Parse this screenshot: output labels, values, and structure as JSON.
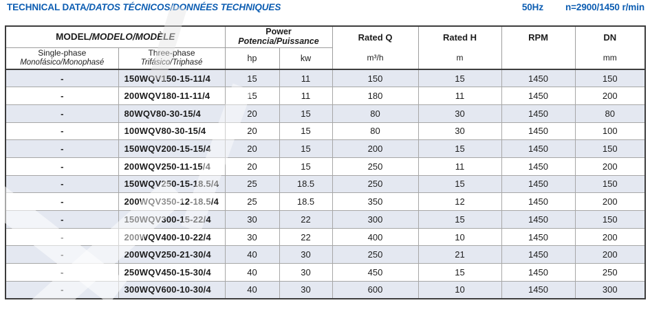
{
  "header": {
    "title_main": "TECHNICAL DATA",
    "title_rest": "/DATOS TÉCNICOS/DONNÉES TECHNIQUES",
    "frequency": "50Hz",
    "speed": "n=2900/1450 r/min"
  },
  "colors": {
    "accent_blue": "#0c5db2",
    "row_stripe": "#e4e8f1",
    "border_dark": "#3c3c3c",
    "border_light": "#9c9c9c"
  },
  "table": {
    "group_headers": {
      "model_main": "MODEL",
      "model_rest": "/MODELO/MODÈLE",
      "power_main": "Power",
      "power_sub": "Potencia/Puissance"
    },
    "columns": {
      "single_phase": {
        "label": "Single-phase",
        "sublabel": "Monofásico/Monophasé"
      },
      "three_phase": {
        "label": "Three-phase",
        "sublabel": "Trifásico/Triphasé"
      },
      "hp": "hp",
      "kw": "kw",
      "rated_q": {
        "label": "Rated Q",
        "unit": "m³/h"
      },
      "rated_h": {
        "label": "Rated H",
        "unit": "m"
      },
      "rpm": {
        "label": "RPM",
        "unit": ""
      },
      "dn": {
        "label": "DN",
        "unit": "mm"
      }
    },
    "rows": [
      {
        "single": "-",
        "model": "150WQV150-15-11/4",
        "hp": "15",
        "kw": "11",
        "q": "150",
        "h": "15",
        "rpm": "1450",
        "dn": "150"
      },
      {
        "single": "-",
        "model": "200WQV180-11-11/4",
        "hp": "15",
        "kw": "11",
        "q": "180",
        "h": "11",
        "rpm": "1450",
        "dn": "200"
      },
      {
        "single": "-",
        "model": "80WQV80-30-15/4",
        "hp": "20",
        "kw": "15",
        "q": "80",
        "h": "30",
        "rpm": "1450",
        "dn": "80"
      },
      {
        "single": "-",
        "model": "100WQV80-30-15/4",
        "hp": "20",
        "kw": "15",
        "q": "80",
        "h": "30",
        "rpm": "1450",
        "dn": "100"
      },
      {
        "single": "-",
        "model": "150WQV200-15-15/4",
        "hp": "20",
        "kw": "15",
        "q": "200",
        "h": "15",
        "rpm": "1450",
        "dn": "150"
      },
      {
        "single": "-",
        "model": "200WQV250-11-15/4",
        "hp": "20",
        "kw": "15",
        "q": "250",
        "h": "11",
        "rpm": "1450",
        "dn": "200"
      },
      {
        "single": "-",
        "model": "150WQV250-15-18.5/4",
        "hp": "25",
        "kw": "18.5",
        "q": "250",
        "h": "15",
        "rpm": "1450",
        "dn": "150"
      },
      {
        "single": "-",
        "model": "200WQV350-12-18.5/4",
        "hp": "25",
        "kw": "18.5",
        "q": "350",
        "h": "12",
        "rpm": "1450",
        "dn": "200"
      },
      {
        "single": "-",
        "model": "150WQV300-15-22/4",
        "hp": "30",
        "kw": "22",
        "q": "300",
        "h": "15",
        "rpm": "1450",
        "dn": "150"
      },
      {
        "single": "-",
        "model": "200WQV400-10-22/4",
        "hp": "30",
        "kw": "22",
        "q": "400",
        "h": "10",
        "rpm": "1450",
        "dn": "200"
      },
      {
        "single": "-",
        "model": "200WQV250-21-30/4",
        "hp": "40",
        "kw": "30",
        "q": "250",
        "h": "21",
        "rpm": "1450",
        "dn": "200"
      },
      {
        "single": "-",
        "model": "250WQV450-15-30/4",
        "hp": "40",
        "kw": "30",
        "q": "450",
        "h": "15",
        "rpm": "1450",
        "dn": "250"
      },
      {
        "single": "-",
        "model": "300WQV600-10-30/4",
        "hp": "40",
        "kw": "30",
        "q": "600",
        "h": "10",
        "rpm": "1450",
        "dn": "300"
      }
    ]
  }
}
